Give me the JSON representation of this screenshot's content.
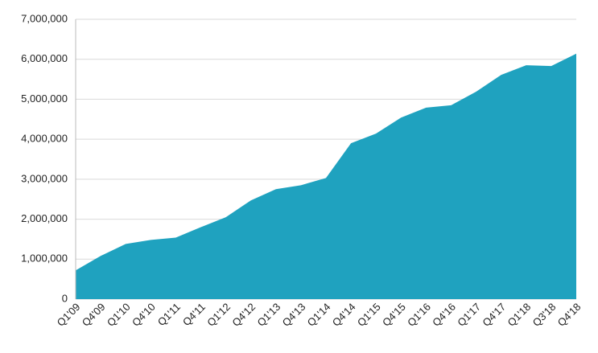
{
  "chart_data": {
    "type": "area",
    "categories": [
      "Q1'09",
      "Q4'09",
      "Q1'10",
      "Q4'10",
      "Q1'11",
      "Q4'11",
      "Q1'12",
      "Q4'12",
      "Q1'13",
      "Q4'13",
      "Q1'14",
      "Q4'14",
      "Q1'15",
      "Q4'15",
      "Q1'16",
      "Q4'16",
      "Q1'17",
      "Q4'17",
      "Q1'18",
      "Q3'18",
      "Q4'18"
    ],
    "values": [
      720000,
      1080000,
      1380000,
      1480000,
      1540000,
      1800000,
      2050000,
      2470000,
      2750000,
      2850000,
      3030000,
      3900000,
      4140000,
      4540000,
      4790000,
      4850000,
      5190000,
      5610000,
      5850000,
      5830000,
      6140000
    ],
    "color": "#1fa2bf",
    "ylim": [
      0,
      7000000
    ],
    "yticks": [
      0,
      {
        "value": 1000000,
        "label": "1,000,000"
      },
      {
        "value": 2000000,
        "label": "2,000,000"
      },
      {
        "value": 3000000,
        "label": "3,000,000"
      },
      {
        "value": 4000000,
        "label": "4,000,000"
      },
      {
        "value": 5000000,
        "label": "5,000,000"
      },
      {
        "value": 6000000,
        "label": "6,000,000"
      },
      {
        "value": 7000000,
        "label": "7,000,000"
      }
    ],
    "grid": true
  }
}
